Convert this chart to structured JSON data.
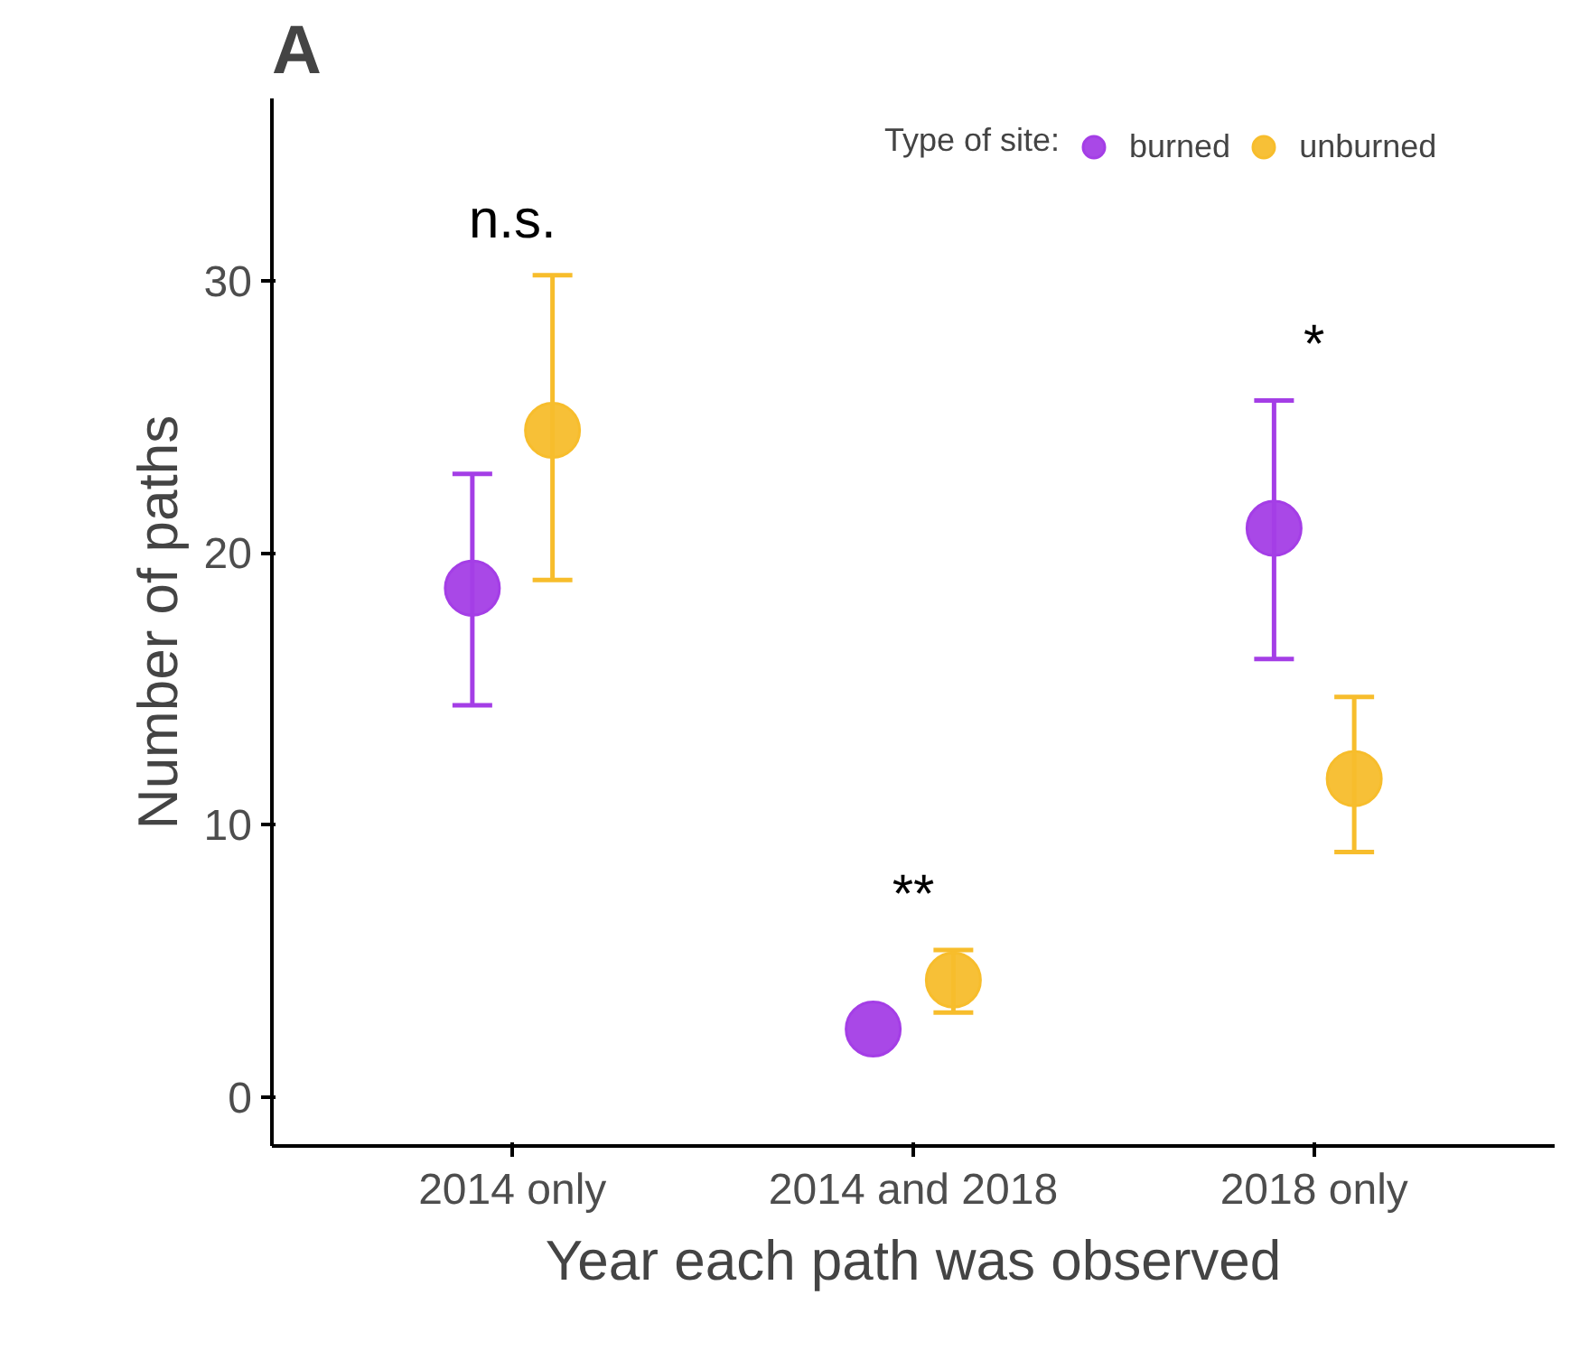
{
  "chart_data": {
    "type": "scatter",
    "xlabel": "Year each path was observed",
    "ylabel": "Number of paths",
    "legend_title": "Type of site:",
    "categories": [
      "2014 only",
      "2014 and 2018",
      "2018 only"
    ],
    "series": [
      {
        "name": "burned",
        "color": "#a43ee6",
        "values": [
          18.7,
          2.5,
          20.9
        ],
        "errors": [
          [
            14.4,
            22.9
          ],
          null,
          [
            16.1,
            25.6
          ]
        ]
      },
      {
        "name": "unburned",
        "color": "#f7bd2c",
        "values": [
          24.5,
          4.3,
          11.7
        ],
        "errors": [
          [
            19.0,
            30.2
          ],
          [
            3.1,
            5.4
          ],
          [
            9.0,
            14.7
          ]
        ]
      }
    ],
    "ylim": [
      -1.8,
      36.7
    ],
    "yticks": [
      0,
      10,
      20,
      30
    ],
    "grid": false,
    "legend": "top right",
    "marker": "circle",
    "annotations": [
      "A",
      "n.s.",
      "**",
      "*"
    ]
  }
}
